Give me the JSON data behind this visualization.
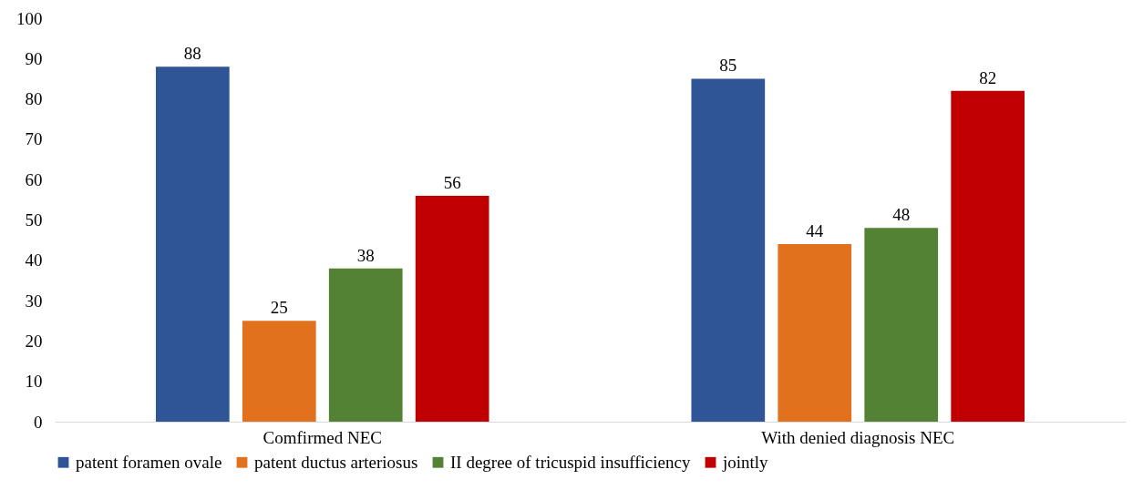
{
  "chart_data": {
    "type": "bar",
    "categories": [
      "Comfirmed NEC",
      "With denied diagnosis NEC"
    ],
    "series": [
      {
        "name": "patent foramen ovale",
        "color": "#2f5597",
        "values": [
          88,
          85
        ]
      },
      {
        "name": "patent ductus arteriosus",
        "color": "#e2711d",
        "values": [
          25,
          44
        ]
      },
      {
        "name": "II degree of tricuspid insufficiency",
        "color": "#548235",
        "values": [
          38,
          48
        ]
      },
      {
        "name": "jointly",
        "color": "#c00000",
        "values": [
          56,
          82
        ]
      }
    ],
    "ylim": [
      0,
      100
    ],
    "yticks": [
      0,
      10,
      20,
      30,
      40,
      50,
      60,
      70,
      80,
      90,
      100
    ],
    "grid": false,
    "legend": "bottom",
    "data_labels": true
  }
}
